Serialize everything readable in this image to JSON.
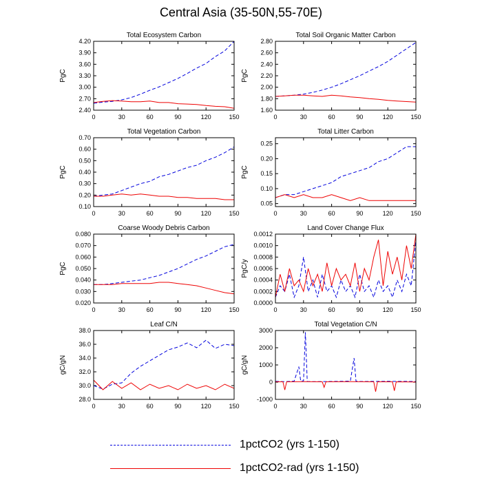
{
  "title": "Central Asia (35-50N,55-70E)",
  "legend": [
    {
      "label": "1pctCO2 (yrs 1-150)",
      "color": "#0000dd",
      "style": "dashed"
    },
    {
      "label": "1pctCO2-rad (yrs 1-150)",
      "color": "#ee0000",
      "style": "solid"
    }
  ],
  "chart_data": [
    {
      "type": "line",
      "title": "Total Ecosystem Carbon",
      "ylabel": "PgC",
      "xlim": [
        0,
        150
      ],
      "xticks": [
        0,
        30,
        60,
        90,
        120,
        150
      ],
      "ylim": [
        2.4,
        4.2
      ],
      "yticks": [
        "2.40",
        "2.70",
        "3.00",
        "3.30",
        "3.60",
        "3.90",
        "4.20"
      ],
      "series": [
        {
          "name": "1pctCO2 (yrs 1-150)",
          "color": "#0000dd",
          "style": "dashed",
          "x": [
            0,
            10,
            20,
            30,
            40,
            50,
            60,
            70,
            80,
            90,
            100,
            110,
            120,
            130,
            140,
            150
          ],
          "y": [
            2.58,
            2.61,
            2.63,
            2.67,
            2.73,
            2.82,
            2.92,
            3.01,
            3.12,
            3.23,
            3.36,
            3.5,
            3.62,
            3.8,
            3.95,
            4.2
          ]
        },
        {
          "name": "1pctCO2-rad (yrs 1-150)",
          "color": "#ee0000",
          "style": "solid",
          "x": [
            0,
            10,
            20,
            30,
            40,
            50,
            60,
            70,
            80,
            90,
            100,
            110,
            120,
            130,
            140,
            150
          ],
          "y": [
            2.6,
            2.63,
            2.65,
            2.64,
            2.62,
            2.62,
            2.64,
            2.6,
            2.6,
            2.57,
            2.56,
            2.55,
            2.52,
            2.5,
            2.49,
            2.45
          ]
        }
      ]
    },
    {
      "type": "line",
      "title": "Total Soil Organic Matter Carbon",
      "ylabel": "PgC",
      "xlim": [
        0,
        150
      ],
      "xticks": [
        0,
        30,
        60,
        90,
        120,
        150
      ],
      "ylim": [
        1.6,
        2.8
      ],
      "yticks": [
        "1.60",
        "1.80",
        "2.00",
        "2.20",
        "2.40",
        "2.60",
        "2.80"
      ],
      "series": [
        {
          "name": "1pctCO2 (yrs 1-150)",
          "color": "#0000dd",
          "style": "dashed",
          "x": [
            0,
            10,
            20,
            30,
            40,
            50,
            60,
            70,
            80,
            90,
            100,
            110,
            120,
            130,
            140,
            150
          ],
          "y": [
            1.84,
            1.85,
            1.86,
            1.88,
            1.91,
            1.95,
            2.0,
            2.06,
            2.13,
            2.2,
            2.28,
            2.36,
            2.45,
            2.56,
            2.67,
            2.78
          ]
        },
        {
          "name": "1pctCO2-rad (yrs 1-150)",
          "color": "#ee0000",
          "style": "solid",
          "x": [
            0,
            10,
            20,
            30,
            40,
            50,
            60,
            70,
            80,
            90,
            100,
            110,
            120,
            130,
            140,
            150
          ],
          "y": [
            1.84,
            1.85,
            1.86,
            1.86,
            1.85,
            1.84,
            1.86,
            1.85,
            1.83,
            1.82,
            1.8,
            1.79,
            1.77,
            1.76,
            1.75,
            1.74
          ]
        }
      ]
    },
    {
      "type": "line",
      "title": "Total Vegetation Carbon",
      "ylabel": "PgC",
      "xlim": [
        0,
        150
      ],
      "xticks": [
        0,
        30,
        60,
        90,
        120,
        150
      ],
      "ylim": [
        0.1,
        0.7
      ],
      "yticks": [
        "0.10",
        "0.20",
        "0.30",
        "0.40",
        "0.50",
        "0.60",
        "0.70"
      ],
      "series": [
        {
          "name": "1pctCO2 (yrs 1-150)",
          "color": "#0000dd",
          "style": "dashed",
          "x": [
            0,
            10,
            20,
            30,
            40,
            50,
            60,
            70,
            80,
            90,
            100,
            110,
            120,
            130,
            140,
            150
          ],
          "y": [
            0.19,
            0.2,
            0.21,
            0.24,
            0.27,
            0.3,
            0.32,
            0.36,
            0.38,
            0.41,
            0.44,
            0.46,
            0.5,
            0.53,
            0.57,
            0.62
          ]
        },
        {
          "name": "1pctCO2-rad (yrs 1-150)",
          "color": "#ee0000",
          "style": "solid",
          "x": [
            0,
            10,
            20,
            30,
            40,
            50,
            60,
            70,
            80,
            90,
            100,
            110,
            120,
            130,
            140,
            150
          ],
          "y": [
            0.19,
            0.19,
            0.2,
            0.21,
            0.2,
            0.21,
            0.2,
            0.19,
            0.19,
            0.18,
            0.18,
            0.17,
            0.17,
            0.17,
            0.16,
            0.16
          ]
        }
      ]
    },
    {
      "type": "line",
      "title": "Total Litter Carbon",
      "ylabel": "PgC",
      "xlim": [
        0,
        150
      ],
      "xticks": [
        0,
        30,
        60,
        90,
        120,
        150
      ],
      "ylim": [
        0.04,
        0.27
      ],
      "yticks": [
        "0.05",
        "0.10",
        "0.15",
        "0.20",
        "0.25"
      ],
      "ytick_values": [
        0.05,
        0.1,
        0.15,
        0.2,
        0.25
      ],
      "series": [
        {
          "name": "1pctCO2 (yrs 1-150)",
          "color": "#0000dd",
          "style": "dashed",
          "x": [
            0,
            10,
            20,
            30,
            40,
            50,
            60,
            70,
            80,
            90,
            100,
            110,
            120,
            130,
            140,
            150
          ],
          "y": [
            0.07,
            0.08,
            0.08,
            0.09,
            0.1,
            0.11,
            0.12,
            0.14,
            0.15,
            0.16,
            0.17,
            0.19,
            0.2,
            0.22,
            0.24,
            0.24
          ]
        },
        {
          "name": "1pctCO2-rad (yrs 1-150)",
          "color": "#ee0000",
          "style": "solid",
          "x": [
            0,
            10,
            20,
            30,
            40,
            50,
            60,
            70,
            80,
            90,
            100,
            110,
            120,
            130,
            140,
            150
          ],
          "y": [
            0.07,
            0.08,
            0.07,
            0.08,
            0.07,
            0.07,
            0.08,
            0.07,
            0.06,
            0.07,
            0.06,
            0.06,
            0.06,
            0.06,
            0.06,
            0.06
          ]
        }
      ]
    },
    {
      "type": "line",
      "title": "Coarse Woody Debris Carbon",
      "ylabel": "PgC",
      "xlim": [
        0,
        150
      ],
      "xticks": [
        0,
        30,
        60,
        90,
        120,
        150
      ],
      "ylim": [
        0.02,
        0.08
      ],
      "yticks": [
        "0.020",
        "0.030",
        "0.040",
        "0.050",
        "0.060",
        "0.070",
        "0.080"
      ],
      "series": [
        {
          "name": "1pctCO2 (yrs 1-150)",
          "color": "#0000dd",
          "style": "dashed",
          "x": [
            0,
            10,
            20,
            30,
            40,
            50,
            60,
            70,
            80,
            90,
            100,
            110,
            120,
            130,
            140,
            150
          ],
          "y": [
            0.036,
            0.036,
            0.037,
            0.038,
            0.039,
            0.04,
            0.042,
            0.044,
            0.047,
            0.05,
            0.054,
            0.058,
            0.061,
            0.065,
            0.069,
            0.071
          ]
        },
        {
          "name": "1pctCO2-rad (yrs 1-150)",
          "color": "#ee0000",
          "style": "solid",
          "x": [
            0,
            10,
            20,
            30,
            40,
            50,
            60,
            70,
            80,
            90,
            100,
            110,
            120,
            130,
            140,
            150
          ],
          "y": [
            0.036,
            0.036,
            0.036,
            0.037,
            0.037,
            0.037,
            0.037,
            0.038,
            0.038,
            0.037,
            0.036,
            0.035,
            0.033,
            0.031,
            0.029,
            0.028
          ]
        }
      ]
    },
    {
      "type": "line",
      "title": "Land Cover Change Flux",
      "ylabel": "PgC/y",
      "xlim": [
        0,
        150
      ],
      "xticks": [
        0,
        30,
        60,
        90,
        120,
        150
      ],
      "ylim": [
        0,
        0.0012
      ],
      "yticks": [
        "0.0000",
        "0.0002",
        "0.0004",
        "0.0006",
        "0.0008",
        "0.0010",
        "0.0012"
      ],
      "series": [
        {
          "name": "1pctCO2 (yrs 1-150)",
          "color": "#0000dd",
          "style": "dashed",
          "x": [
            0,
            5,
            10,
            15,
            20,
            25,
            30,
            35,
            40,
            45,
            50,
            55,
            60,
            65,
            70,
            75,
            80,
            85,
            90,
            95,
            100,
            105,
            110,
            115,
            120,
            125,
            130,
            135,
            140,
            145,
            150
          ],
          "y": [
            0.0001,
            0.0003,
            0.0002,
            0.0005,
            0.0001,
            0.0003,
            0.0008,
            0.0002,
            0.0004,
            0.0001,
            0.0005,
            0.0002,
            0.0003,
            0.0001,
            0.0004,
            0.0002,
            0.0003,
            0.0001,
            0.0005,
            0.0002,
            0.0003,
            0.0001,
            0.0004,
            0.0002,
            0.0003,
            0.0001,
            0.0004,
            0.0002,
            0.0005,
            0.0003,
            0.0011
          ]
        },
        {
          "name": "1pctCO2-rad (yrs 1-150)",
          "color": "#ee0000",
          "style": "solid",
          "x": [
            0,
            5,
            10,
            15,
            20,
            25,
            30,
            35,
            40,
            45,
            50,
            55,
            60,
            65,
            70,
            75,
            80,
            85,
            90,
            95,
            100,
            105,
            110,
            115,
            120,
            125,
            130,
            135,
            140,
            145,
            150
          ],
          "y": [
            0.0001,
            0.0005,
            0.0002,
            0.0006,
            0.0003,
            0.0004,
            0.0002,
            0.0006,
            0.0003,
            0.0005,
            0.0002,
            0.0007,
            0.0003,
            0.0006,
            0.0004,
            0.0005,
            0.0003,
            0.0007,
            0.0002,
            0.0006,
            0.0004,
            0.0008,
            0.0011,
            0.0003,
            0.0009,
            0.0005,
            0.0008,
            0.0004,
            0.001,
            0.0006,
            0.0012
          ]
        }
      ]
    },
    {
      "type": "line",
      "title": "Leaf C/N",
      "ylabel": "gC/gN",
      "xlim": [
        0,
        150
      ],
      "xticks": [
        0,
        30,
        60,
        90,
        120,
        150
      ],
      "ylim": [
        28,
        38
      ],
      "yticks": [
        "28.0",
        "30.0",
        "32.0",
        "34.0",
        "36.0",
        "38.0"
      ],
      "series": [
        {
          "name": "1pctCO2 (yrs 1-150)",
          "color": "#0000dd",
          "style": "dashed",
          "x": [
            0,
            10,
            20,
            30,
            40,
            50,
            60,
            70,
            80,
            90,
            100,
            110,
            120,
            130,
            140,
            150
          ],
          "y": [
            30.0,
            29.5,
            30.2,
            30.4,
            31.8,
            32.8,
            33.6,
            34.4,
            35.2,
            35.6,
            36.2,
            35.5,
            36.6,
            35.4,
            36.0,
            35.8
          ]
        },
        {
          "name": "1pctCO2-rad (yrs 1-150)",
          "color": "#ee0000",
          "style": "solid",
          "x": [
            0,
            10,
            20,
            30,
            40,
            50,
            60,
            70,
            80,
            90,
            100,
            110,
            120,
            130,
            140,
            150
          ],
          "y": [
            30.8,
            29.4,
            30.6,
            29.6,
            30.4,
            29.4,
            30.2,
            29.6,
            30.0,
            29.4,
            30.2,
            29.6,
            30.0,
            29.4,
            30.2,
            29.6
          ]
        }
      ]
    },
    {
      "type": "line",
      "title": "Total Vegetation C/N",
      "ylabel": "gC/gN",
      "xlim": [
        0,
        150
      ],
      "xticks": [
        0,
        30,
        60,
        90,
        120,
        150
      ],
      "ylim": [
        -1000,
        3000
      ],
      "yticks": [
        "-1000",
        "0",
        "1000",
        "2000",
        "3000"
      ],
      "ytick_values": [
        -1000,
        0,
        1000,
        2000,
        3000
      ],
      "series": [
        {
          "name": "1pctCO2 (yrs 1-150)",
          "color": "#0000dd",
          "style": "dashed",
          "x": [
            0,
            10,
            20,
            25,
            27,
            30,
            32,
            34,
            40,
            60,
            80,
            84,
            86,
            90,
            120,
            150
          ],
          "y": [
            50,
            30,
            60,
            900,
            60,
            80,
            2900,
            40,
            30,
            40,
            60,
            1400,
            60,
            40,
            50,
            40
          ]
        },
        {
          "name": "1pctCO2-rad (yrs 1-150)",
          "color": "#ee0000",
          "style": "solid",
          "x": [
            0,
            8,
            10,
            12,
            30,
            50,
            52,
            54,
            80,
            105,
            107,
            109,
            125,
            127,
            129,
            150
          ],
          "y": [
            20,
            20,
            -450,
            20,
            30,
            20,
            -300,
            20,
            30,
            20,
            -550,
            20,
            20,
            -500,
            20,
            10
          ]
        }
      ]
    }
  ]
}
